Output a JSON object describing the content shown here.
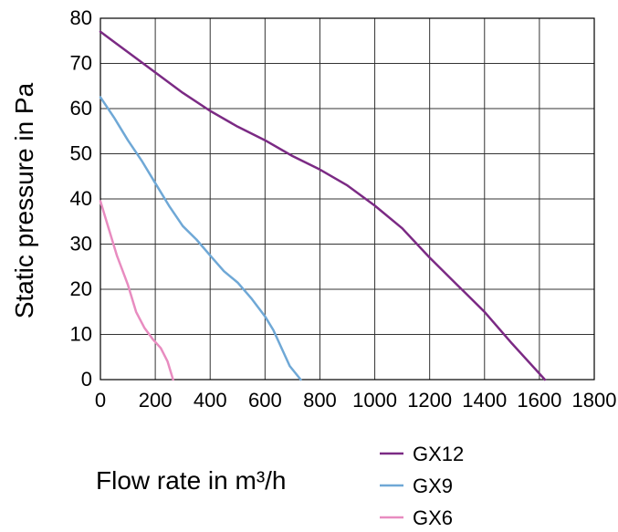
{
  "chart_data": {
    "type": "line",
    "title": "",
    "xlabel": "Flow rate in m³/h",
    "ylabel": "Static pressure in Pa",
    "xlim": [
      0,
      1800
    ],
    "ylim": [
      0,
      80
    ],
    "x_ticks": [
      0,
      200,
      400,
      600,
      800,
      1000,
      1200,
      1400,
      1600,
      1800
    ],
    "y_ticks": [
      0,
      10,
      20,
      30,
      40,
      50,
      60,
      70,
      80
    ],
    "grid": true,
    "legend_position": "bottom-right",
    "series": [
      {
        "name": "GX12",
        "color": "#7b2a84",
        "points": [
          [
            0,
            77
          ],
          [
            100,
            72.5
          ],
          [
            200,
            68
          ],
          [
            300,
            63.5
          ],
          [
            400,
            59.5
          ],
          [
            500,
            56
          ],
          [
            600,
            53
          ],
          [
            700,
            49.5
          ],
          [
            800,
            46.5
          ],
          [
            900,
            43
          ],
          [
            1000,
            38.5
          ],
          [
            1100,
            33.5
          ],
          [
            1200,
            27
          ],
          [
            1300,
            21
          ],
          [
            1400,
            15
          ],
          [
            1500,
            8
          ],
          [
            1620,
            0
          ]
        ]
      },
      {
        "name": "GX9",
        "color": "#6fa8d6",
        "points": [
          [
            0,
            62.5
          ],
          [
            50,
            58
          ],
          [
            100,
            53
          ],
          [
            150,
            48.5
          ],
          [
            200,
            43.5
          ],
          [
            250,
            38.5
          ],
          [
            300,
            34
          ],
          [
            350,
            31
          ],
          [
            400,
            27.5
          ],
          [
            450,
            24
          ],
          [
            500,
            21.5
          ],
          [
            550,
            18
          ],
          [
            600,
            14
          ],
          [
            630,
            11
          ],
          [
            660,
            7
          ],
          [
            690,
            3
          ],
          [
            730,
            0
          ]
        ]
      },
      {
        "name": "GX6",
        "color": "#e88cc0",
        "points": [
          [
            0,
            39.5
          ],
          [
            30,
            33.5
          ],
          [
            60,
            27.5
          ],
          [
            100,
            21
          ],
          [
            130,
            15
          ],
          [
            160,
            11.5
          ],
          [
            190,
            9
          ],
          [
            220,
            7
          ],
          [
            245,
            4
          ],
          [
            265,
            0
          ]
        ]
      }
    ]
  }
}
